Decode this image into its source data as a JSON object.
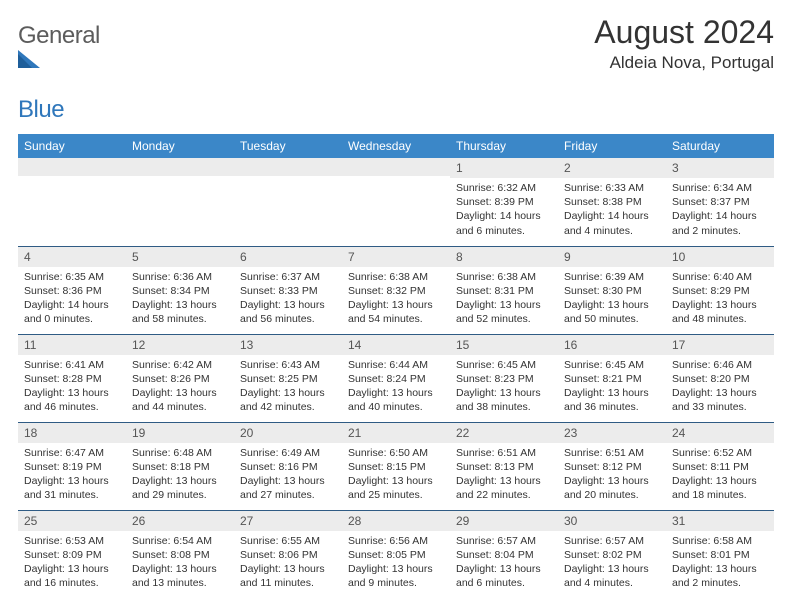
{
  "logo": {
    "word1": "General",
    "word2": "Blue"
  },
  "title": "August 2024",
  "subtitle": "Aldeia Nova, Portugal",
  "colors": {
    "header_bg": "#3b87c8",
    "header_text": "#ffffff",
    "day_bar_bg": "#ececec",
    "day_bar_text": "#555555",
    "row_border": "#2f5b84",
    "body_text": "#333333",
    "logo_gray": "#5c5c5c",
    "logo_blue": "#2f77bb"
  },
  "day_headers": [
    "Sunday",
    "Monday",
    "Tuesday",
    "Wednesday",
    "Thursday",
    "Friday",
    "Saturday"
  ],
  "weeks": [
    [
      {
        "day": "",
        "sunrise": "",
        "sunset": "",
        "dl1": "",
        "dl2": ""
      },
      {
        "day": "",
        "sunrise": "",
        "sunset": "",
        "dl1": "",
        "dl2": ""
      },
      {
        "day": "",
        "sunrise": "",
        "sunset": "",
        "dl1": "",
        "dl2": ""
      },
      {
        "day": "",
        "sunrise": "",
        "sunset": "",
        "dl1": "",
        "dl2": ""
      },
      {
        "day": "1",
        "sunrise": "Sunrise: 6:32 AM",
        "sunset": "Sunset: 8:39 PM",
        "dl1": "Daylight: 14 hours",
        "dl2": "and 6 minutes."
      },
      {
        "day": "2",
        "sunrise": "Sunrise: 6:33 AM",
        "sunset": "Sunset: 8:38 PM",
        "dl1": "Daylight: 14 hours",
        "dl2": "and 4 minutes."
      },
      {
        "day": "3",
        "sunrise": "Sunrise: 6:34 AM",
        "sunset": "Sunset: 8:37 PM",
        "dl1": "Daylight: 14 hours",
        "dl2": "and 2 minutes."
      }
    ],
    [
      {
        "day": "4",
        "sunrise": "Sunrise: 6:35 AM",
        "sunset": "Sunset: 8:36 PM",
        "dl1": "Daylight: 14 hours",
        "dl2": "and 0 minutes."
      },
      {
        "day": "5",
        "sunrise": "Sunrise: 6:36 AM",
        "sunset": "Sunset: 8:34 PM",
        "dl1": "Daylight: 13 hours",
        "dl2": "and 58 minutes."
      },
      {
        "day": "6",
        "sunrise": "Sunrise: 6:37 AM",
        "sunset": "Sunset: 8:33 PM",
        "dl1": "Daylight: 13 hours",
        "dl2": "and 56 minutes."
      },
      {
        "day": "7",
        "sunrise": "Sunrise: 6:38 AM",
        "sunset": "Sunset: 8:32 PM",
        "dl1": "Daylight: 13 hours",
        "dl2": "and 54 minutes."
      },
      {
        "day": "8",
        "sunrise": "Sunrise: 6:38 AM",
        "sunset": "Sunset: 8:31 PM",
        "dl1": "Daylight: 13 hours",
        "dl2": "and 52 minutes."
      },
      {
        "day": "9",
        "sunrise": "Sunrise: 6:39 AM",
        "sunset": "Sunset: 8:30 PM",
        "dl1": "Daylight: 13 hours",
        "dl2": "and 50 minutes."
      },
      {
        "day": "10",
        "sunrise": "Sunrise: 6:40 AM",
        "sunset": "Sunset: 8:29 PM",
        "dl1": "Daylight: 13 hours",
        "dl2": "and 48 minutes."
      }
    ],
    [
      {
        "day": "11",
        "sunrise": "Sunrise: 6:41 AM",
        "sunset": "Sunset: 8:28 PM",
        "dl1": "Daylight: 13 hours",
        "dl2": "and 46 minutes."
      },
      {
        "day": "12",
        "sunrise": "Sunrise: 6:42 AM",
        "sunset": "Sunset: 8:26 PM",
        "dl1": "Daylight: 13 hours",
        "dl2": "and 44 minutes."
      },
      {
        "day": "13",
        "sunrise": "Sunrise: 6:43 AM",
        "sunset": "Sunset: 8:25 PM",
        "dl1": "Daylight: 13 hours",
        "dl2": "and 42 minutes."
      },
      {
        "day": "14",
        "sunrise": "Sunrise: 6:44 AM",
        "sunset": "Sunset: 8:24 PM",
        "dl1": "Daylight: 13 hours",
        "dl2": "and 40 minutes."
      },
      {
        "day": "15",
        "sunrise": "Sunrise: 6:45 AM",
        "sunset": "Sunset: 8:23 PM",
        "dl1": "Daylight: 13 hours",
        "dl2": "and 38 minutes."
      },
      {
        "day": "16",
        "sunrise": "Sunrise: 6:45 AM",
        "sunset": "Sunset: 8:21 PM",
        "dl1": "Daylight: 13 hours",
        "dl2": "and 36 minutes."
      },
      {
        "day": "17",
        "sunrise": "Sunrise: 6:46 AM",
        "sunset": "Sunset: 8:20 PM",
        "dl1": "Daylight: 13 hours",
        "dl2": "and 33 minutes."
      }
    ],
    [
      {
        "day": "18",
        "sunrise": "Sunrise: 6:47 AM",
        "sunset": "Sunset: 8:19 PM",
        "dl1": "Daylight: 13 hours",
        "dl2": "and 31 minutes."
      },
      {
        "day": "19",
        "sunrise": "Sunrise: 6:48 AM",
        "sunset": "Sunset: 8:18 PM",
        "dl1": "Daylight: 13 hours",
        "dl2": "and 29 minutes."
      },
      {
        "day": "20",
        "sunrise": "Sunrise: 6:49 AM",
        "sunset": "Sunset: 8:16 PM",
        "dl1": "Daylight: 13 hours",
        "dl2": "and 27 minutes."
      },
      {
        "day": "21",
        "sunrise": "Sunrise: 6:50 AM",
        "sunset": "Sunset: 8:15 PM",
        "dl1": "Daylight: 13 hours",
        "dl2": "and 25 minutes."
      },
      {
        "day": "22",
        "sunrise": "Sunrise: 6:51 AM",
        "sunset": "Sunset: 8:13 PM",
        "dl1": "Daylight: 13 hours",
        "dl2": "and 22 minutes."
      },
      {
        "day": "23",
        "sunrise": "Sunrise: 6:51 AM",
        "sunset": "Sunset: 8:12 PM",
        "dl1": "Daylight: 13 hours",
        "dl2": "and 20 minutes."
      },
      {
        "day": "24",
        "sunrise": "Sunrise: 6:52 AM",
        "sunset": "Sunset: 8:11 PM",
        "dl1": "Daylight: 13 hours",
        "dl2": "and 18 minutes."
      }
    ],
    [
      {
        "day": "25",
        "sunrise": "Sunrise: 6:53 AM",
        "sunset": "Sunset: 8:09 PM",
        "dl1": "Daylight: 13 hours",
        "dl2": "and 16 minutes."
      },
      {
        "day": "26",
        "sunrise": "Sunrise: 6:54 AM",
        "sunset": "Sunset: 8:08 PM",
        "dl1": "Daylight: 13 hours",
        "dl2": "and 13 minutes."
      },
      {
        "day": "27",
        "sunrise": "Sunrise: 6:55 AM",
        "sunset": "Sunset: 8:06 PM",
        "dl1": "Daylight: 13 hours",
        "dl2": "and 11 minutes."
      },
      {
        "day": "28",
        "sunrise": "Sunrise: 6:56 AM",
        "sunset": "Sunset: 8:05 PM",
        "dl1": "Daylight: 13 hours",
        "dl2": "and 9 minutes."
      },
      {
        "day": "29",
        "sunrise": "Sunrise: 6:57 AM",
        "sunset": "Sunset: 8:04 PM",
        "dl1": "Daylight: 13 hours",
        "dl2": "and 6 minutes."
      },
      {
        "day": "30",
        "sunrise": "Sunrise: 6:57 AM",
        "sunset": "Sunset: 8:02 PM",
        "dl1": "Daylight: 13 hours",
        "dl2": "and 4 minutes."
      },
      {
        "day": "31",
        "sunrise": "Sunrise: 6:58 AM",
        "sunset": "Sunset: 8:01 PM",
        "dl1": "Daylight: 13 hours",
        "dl2": "and 2 minutes."
      }
    ]
  ]
}
